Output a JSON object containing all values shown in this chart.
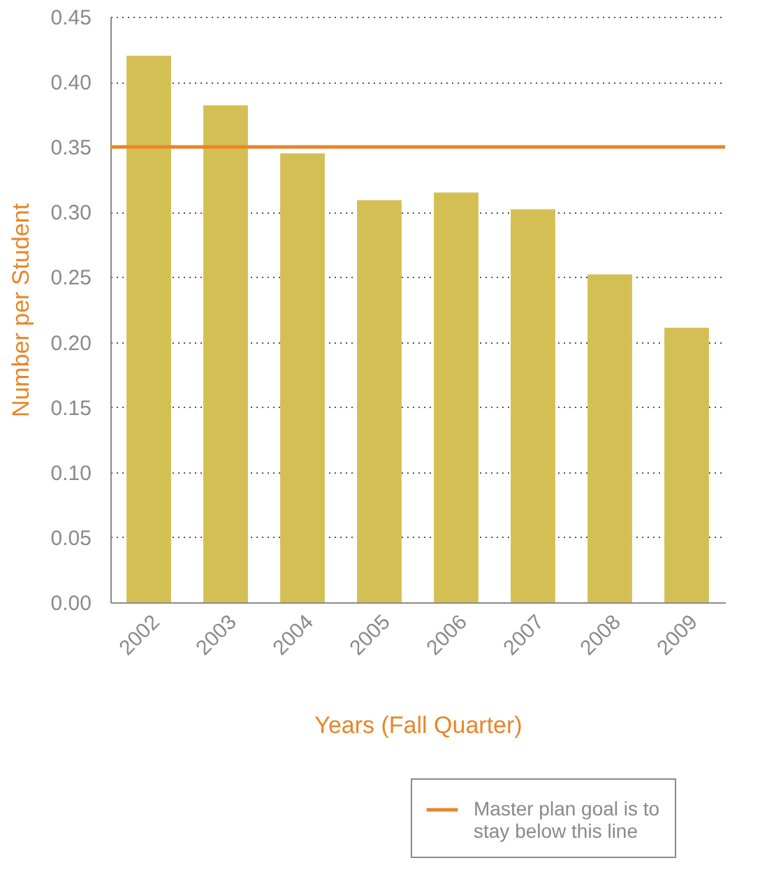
{
  "chart_data": {
    "type": "bar",
    "xlabel": "Years (Fall Quarter)",
    "ylabel": "Number per Student",
    "categories": [
      "2002",
      "2003",
      "2004",
      "2005",
      "2006",
      "2007",
      "2008",
      "2009"
    ],
    "values": [
      0.42,
      0.382,
      0.345,
      0.309,
      0.315,
      0.302,
      0.252,
      0.211
    ],
    "color": "#d4bf55",
    "ylim": [
      0,
      0.45
    ],
    "yticks": [
      {
        "value": 0,
        "label": "0.00"
      },
      {
        "value": 0.05,
        "label": "0.05"
      },
      {
        "value": 0.1,
        "label": "0.10"
      },
      {
        "value": 0.15,
        "label": "0.15"
      },
      {
        "value": 0.2,
        "label": "0.20"
      },
      {
        "value": 0.25,
        "label": "0.25"
      },
      {
        "value": 0.3,
        "label": "0.30"
      },
      {
        "value": 0.35,
        "label": "0.35"
      },
      {
        "value": 0.4,
        "label": "0.40"
      },
      {
        "value": 0.45,
        "label": "0.45"
      }
    ],
    "grid": "y",
    "legend": "bottom right",
    "ref_lines": [
      {
        "axis": "y",
        "value": 0.35,
        "label": "Master plan goal is to stay below this line",
        "color": "#e8862a"
      }
    ]
  }
}
